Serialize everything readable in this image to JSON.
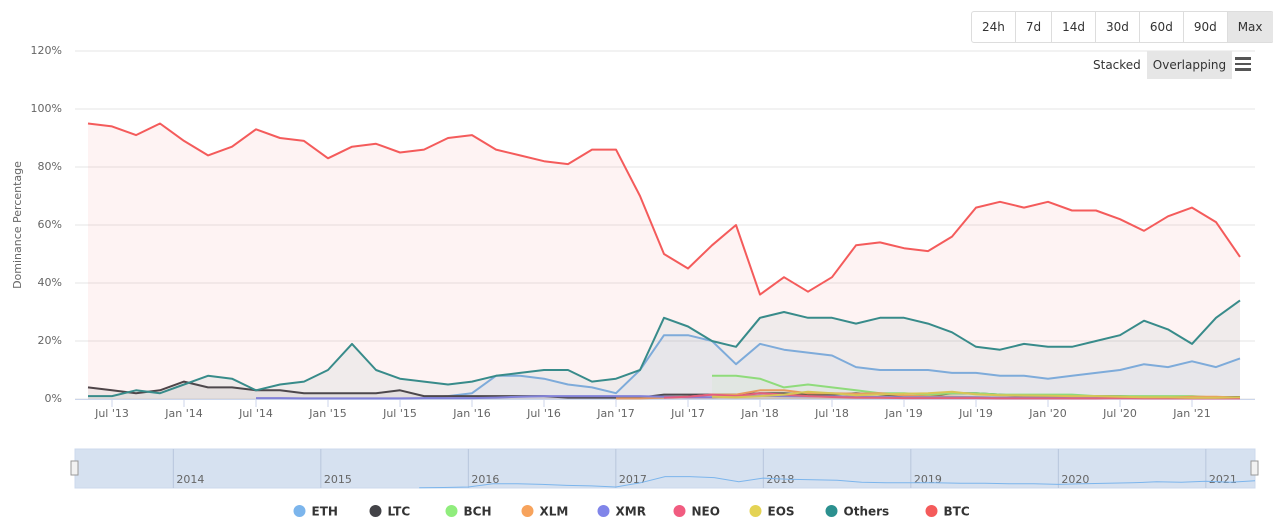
{
  "ui": {
    "range_buttons": [
      "24h",
      "7d",
      "14d",
      "30d",
      "60d",
      "90d",
      "Max"
    ],
    "active_range": "Max",
    "mode_buttons": [
      "Stacked",
      "Overlapping"
    ],
    "active_mode": "Overlapping"
  },
  "chart_data": {
    "type": "line",
    "y_label": "Dominance Percentage",
    "grid": true,
    "area": true,
    "x": [
      "2013-05",
      "2013-07",
      "2013-09",
      "2013-11",
      "2014-01",
      "2014-03",
      "2014-05",
      "2014-07",
      "2014-09",
      "2014-11",
      "2015-01",
      "2015-03",
      "2015-05",
      "2015-07",
      "2015-09",
      "2015-11",
      "2016-01",
      "2016-03",
      "2016-05",
      "2016-07",
      "2016-09",
      "2016-11",
      "2017-01",
      "2017-03",
      "2017-05",
      "2017-07",
      "2017-09",
      "2017-11",
      "2018-01",
      "2018-03",
      "2018-05",
      "2018-07",
      "2018-09",
      "2018-11",
      "2019-01",
      "2019-03",
      "2019-05",
      "2019-07",
      "2019-09",
      "2019-11",
      "2020-01",
      "2020-03",
      "2020-05",
      "2020-07",
      "2020-09",
      "2020-11",
      "2021-01",
      "2021-03",
      "2021-05"
    ],
    "xlim": [
      "2013-05",
      "2021-05"
    ],
    "xticks": [
      {
        "value": "2013-07",
        "label": "Jul '13"
      },
      {
        "value": "2014-01",
        "label": "Jan '14"
      },
      {
        "value": "2014-07",
        "label": "Jul '14"
      },
      {
        "value": "2015-01",
        "label": "Jan '15"
      },
      {
        "value": "2015-07",
        "label": "Jul '15"
      },
      {
        "value": "2016-01",
        "label": "Jan '16"
      },
      {
        "value": "2016-07",
        "label": "Jul '16"
      },
      {
        "value": "2017-01",
        "label": "Jan '17"
      },
      {
        "value": "2017-07",
        "label": "Jul '17"
      },
      {
        "value": "2018-01",
        "label": "Jan '18"
      },
      {
        "value": "2018-07",
        "label": "Jul '18"
      },
      {
        "value": "2019-01",
        "label": "Jan '19"
      },
      {
        "value": "2019-07",
        "label": "Jul '19"
      },
      {
        "value": "2020-01",
        "label": "Jan '20"
      },
      {
        "value": "2020-07",
        "label": "Jul '20"
      },
      {
        "value": "2021-01",
        "label": "Jan '21"
      }
    ],
    "navigator_xticks": [
      {
        "value": "2014-01",
        "label": "2014"
      },
      {
        "value": "2015-01",
        "label": "2015"
      },
      {
        "value": "2016-01",
        "label": "2016"
      },
      {
        "value": "2017-01",
        "label": "2017"
      },
      {
        "value": "2018-01",
        "label": "2018"
      },
      {
        "value": "2019-01",
        "label": "2019"
      },
      {
        "value": "2020-01",
        "label": "2020"
      },
      {
        "value": "2021-01",
        "label": "2021"
      }
    ],
    "ylim": [
      0,
      120
    ],
    "yticks": [
      {
        "value": 0,
        "label": "0%"
      },
      {
        "value": 20,
        "label": "20%"
      },
      {
        "value": 40,
        "label": "40%"
      },
      {
        "value": 60,
        "label": "60%"
      },
      {
        "value": 80,
        "label": "80%"
      },
      {
        "value": 100,
        "label": "100%"
      },
      {
        "value": 120,
        "label": "120%"
      }
    ],
    "series": [
      {
        "name": "ETH",
        "color": "#7cb5ec",
        "values": [
          null,
          null,
          null,
          null,
          null,
          null,
          null,
          null,
          null,
          null,
          null,
          null,
          null,
          null,
          0.5,
          1,
          2,
          8,
          8,
          7,
          5,
          4,
          2,
          10,
          22,
          22,
          20,
          12,
          19,
          17,
          16,
          15,
          11,
          10,
          10,
          10,
          9,
          9,
          8,
          8,
          7,
          8,
          9,
          10,
          12,
          11,
          13,
          11,
          14
        ]
      },
      {
        "name": "LTC",
        "color": "#434348",
        "values": [
          4,
          3,
          2,
          3,
          6,
          4,
          4,
          3,
          3,
          2,
          2,
          2,
          2,
          3,
          1,
          1,
          1,
          1,
          1,
          1,
          0.5,
          0.5,
          0.5,
          0.5,
          1.5,
          1.5,
          1.5,
          1.5,
          2,
          2,
          1.5,
          1.5,
          2,
          1.5,
          1,
          1,
          2,
          2,
          1.5,
          1,
          1,
          1,
          1,
          1,
          0.7,
          0.7,
          0.7,
          0.6,
          0.7
        ]
      },
      {
        "name": "BCH",
        "color": "#90ed7d",
        "values": [
          null,
          null,
          null,
          null,
          null,
          null,
          null,
          null,
          null,
          null,
          null,
          null,
          null,
          null,
          null,
          null,
          null,
          null,
          null,
          null,
          null,
          null,
          null,
          null,
          null,
          null,
          8,
          8,
          7,
          4,
          5,
          4,
          3,
          2,
          2,
          1.5,
          2,
          2,
          1.5,
          1.5,
          1.5,
          1.5,
          1,
          1,
          1,
          1,
          1,
          0.5,
          0.5
        ]
      },
      {
        "name": "XLM",
        "color": "#f7a35c",
        "values": [
          null,
          null,
          null,
          null,
          null,
          null,
          null,
          null,
          null,
          null,
          null,
          null,
          null,
          null,
          null,
          null,
          null,
          null,
          null,
          null,
          null,
          null,
          0.2,
          0.2,
          0.5,
          0.8,
          1.5,
          1.5,
          3,
          3,
          2,
          2,
          1.8,
          2,
          1.2,
          0.9,
          0.8,
          0.6,
          0.5,
          0.5,
          0.4,
          0.3,
          0.3,
          0.4,
          0.4,
          0.5,
          0.8,
          0.8,
          0.5
        ]
      },
      {
        "name": "XMR",
        "color": "#8085e9",
        "values": [
          null,
          null,
          null,
          null,
          null,
          null,
          null,
          0.3,
          0.3,
          0.2,
          0.2,
          0.2,
          0.2,
          0.2,
          0.3,
          0.3,
          0.3,
          0.5,
          0.8,
          1,
          1,
          1,
          1,
          1,
          0.8,
          0.6,
          0.6,
          0.9,
          1.1,
          1,
          0.9,
          0.9,
          0.8,
          0.7,
          0.6,
          0.6,
          0.6,
          0.6,
          0.5,
          0.5,
          0.5,
          0.5,
          0.5,
          0.4,
          0.4,
          0.4,
          0.3,
          0.3,
          0.3
        ]
      },
      {
        "name": "NEO",
        "color": "#f15c80",
        "values": [
          null,
          null,
          null,
          null,
          null,
          null,
          null,
          null,
          null,
          null,
          null,
          null,
          null,
          null,
          null,
          null,
          null,
          null,
          null,
          null,
          null,
          null,
          null,
          null,
          0.5,
          0.8,
          1.5,
          1,
          2,
          1.5,
          1,
          0.7,
          0.5,
          0.4,
          0.3,
          0.3,
          0.3,
          0.3,
          0.2,
          0.2,
          0.2,
          0.2,
          0.2,
          0.3,
          0.2,
          0.2,
          0.2,
          0.2,
          0.2
        ]
      },
      {
        "name": "EOS",
        "color": "#e4d354",
        "values": [
          null,
          null,
          null,
          null,
          null,
          null,
          null,
          null,
          null,
          null,
          null,
          null,
          null,
          null,
          null,
          null,
          null,
          null,
          null,
          null,
          null,
          null,
          null,
          null,
          null,
          null,
          0.8,
          0.6,
          1,
          1.5,
          2.5,
          2,
          1.3,
          1.6,
          1.8,
          2,
          2.5,
          1.6,
          1.3,
          1.2,
          1.1,
          1,
          1,
          0.8,
          0.6,
          0.6,
          0.4,
          0.4,
          0.6
        ]
      },
      {
        "name": "Others",
        "color": "#2b908f",
        "values": [
          1,
          1,
          3,
          2,
          5,
          8,
          7,
          3,
          5,
          6,
          10,
          19,
          10,
          7,
          6,
          5,
          6,
          8,
          9,
          10,
          10,
          6,
          7,
          10,
          28,
          25,
          20,
          18,
          28,
          30,
          28,
          28,
          26,
          28,
          28,
          26,
          23,
          18,
          17,
          19,
          18,
          18,
          20,
          22,
          27,
          24,
          19,
          28,
          34
        ]
      },
      {
        "name": "BTC",
        "color": "#f45b5b",
        "values": [
          95,
          94,
          91,
          95,
          89,
          84,
          87,
          93,
          90,
          89,
          83,
          87,
          88,
          85,
          86,
          90,
          91,
          86,
          84,
          82,
          81,
          86,
          86,
          70,
          50,
          45,
          53,
          60,
          36,
          42,
          37,
          42,
          53,
          54,
          52,
          51,
          56,
          66,
          68,
          66,
          68,
          65,
          65,
          62,
          58,
          63,
          66,
          61,
          49
        ]
      }
    ]
  }
}
